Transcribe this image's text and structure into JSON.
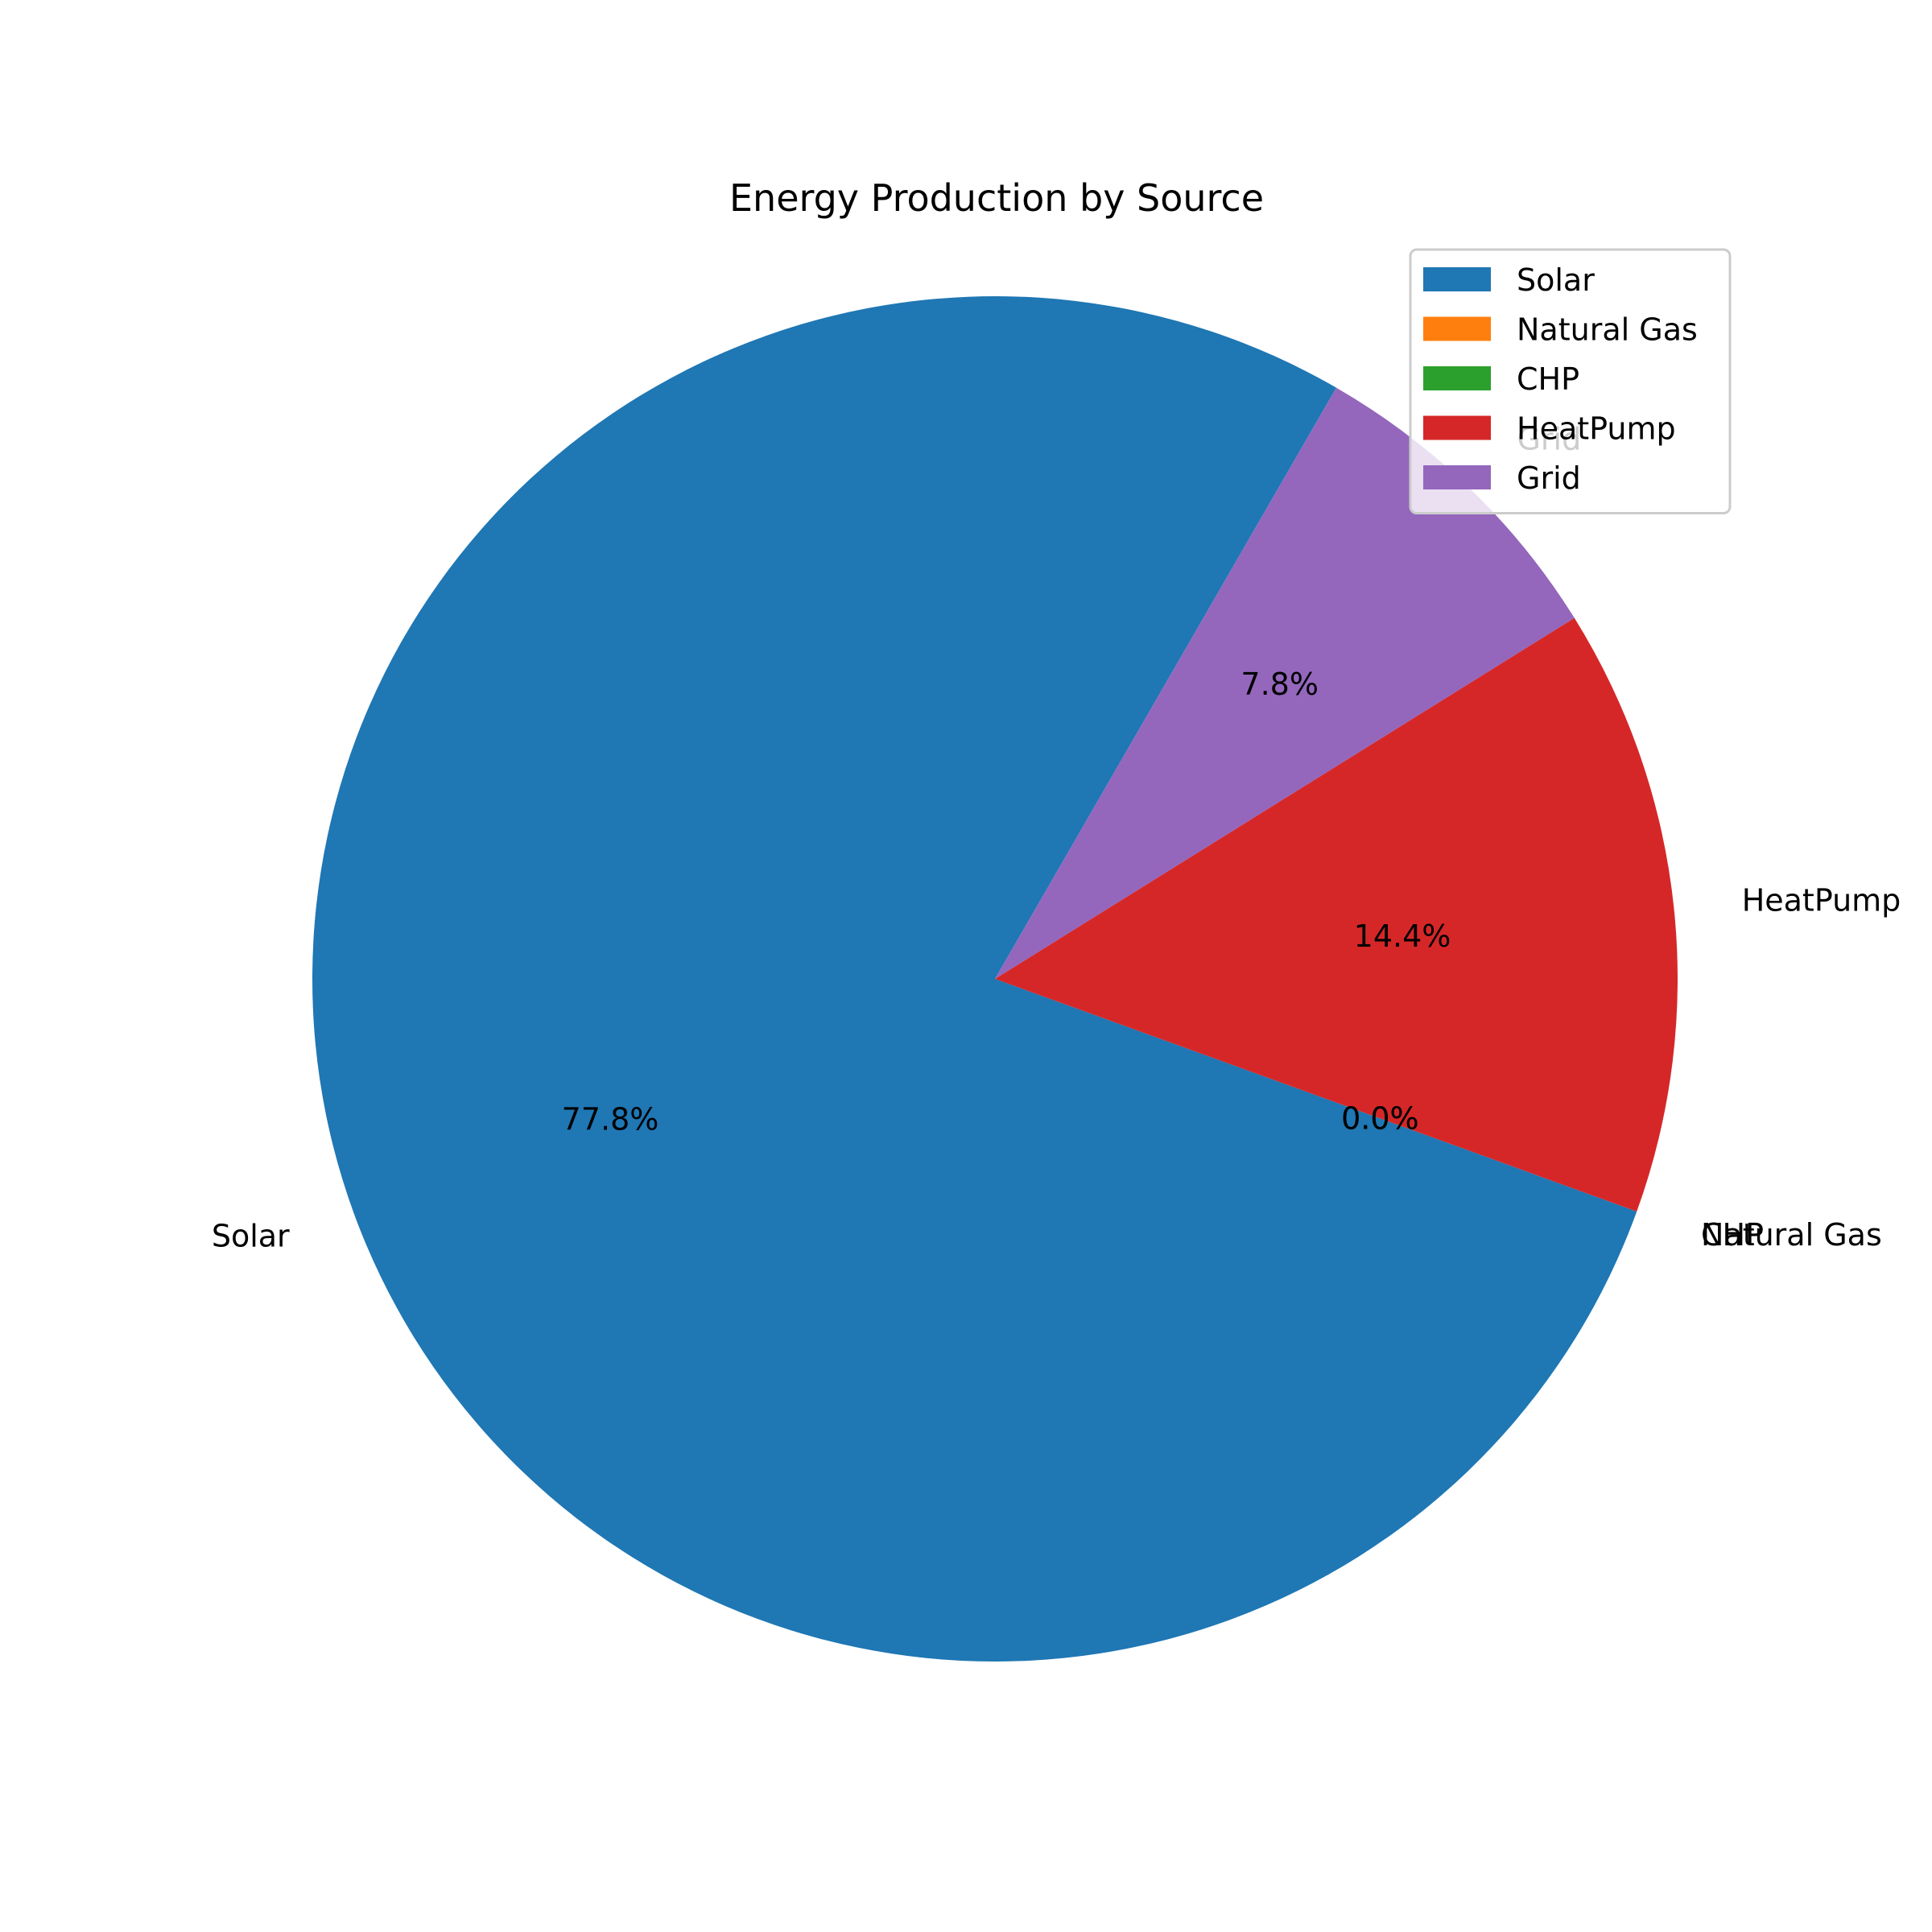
{
  "chart_data": {
    "type": "pie",
    "title": "Energy Production by Source",
    "categories": [
      "Solar",
      "Natural Gas",
      "CHP",
      "HeatPump",
      "Grid"
    ],
    "values": [
      77.8,
      0.0,
      0.0,
      14.4,
      7.8
    ],
    "value_labels": [
      "77.8%",
      "0.0%",
      "0.0%",
      "14.4%",
      "7.8%"
    ],
    "colors": [
      "#1f77b4",
      "#ff7f0e",
      "#2ca02c",
      "#d62728",
      "#9467bd"
    ],
    "start_angle_deg": 60,
    "direction": "counterclockwise",
    "legend": {
      "placement": "top-right",
      "entries": [
        "Solar",
        "Natural Gas",
        "CHP",
        "HeatPump",
        "Grid"
      ]
    }
  }
}
